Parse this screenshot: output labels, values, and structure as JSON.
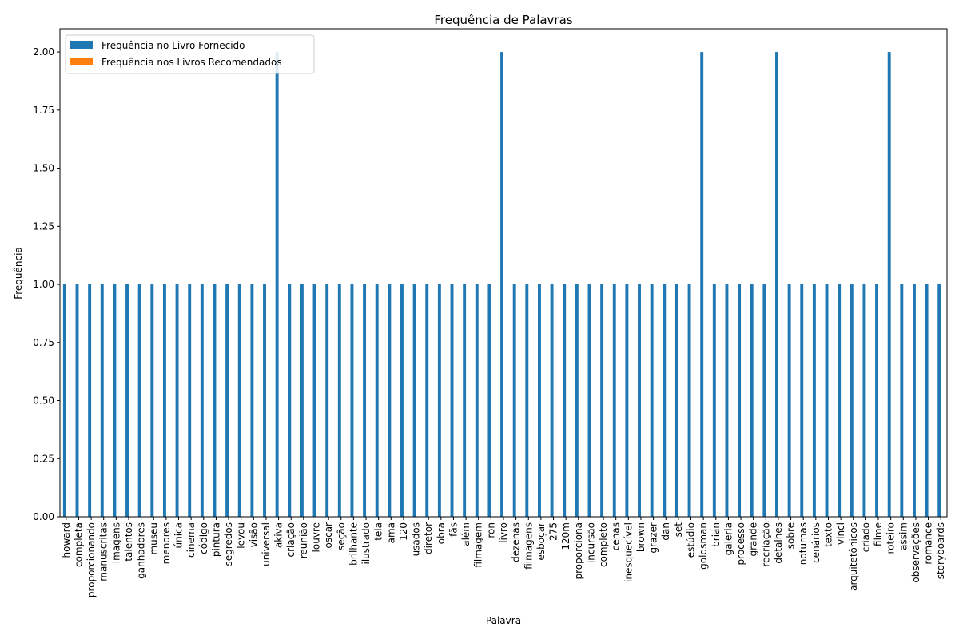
{
  "chart_data": {
    "type": "bar",
    "title": "Frequência de Palavras",
    "xlabel": "Palavra",
    "ylabel": "Frequência",
    "ylim": [
      0,
      2.1
    ],
    "yticks": [
      "0.00",
      "0.25",
      "0.50",
      "0.75",
      "1.00",
      "1.25",
      "1.50",
      "1.75",
      "2.00"
    ],
    "legend_position": "upper-left",
    "grid": false,
    "categories": [
      "howard",
      "completa",
      "proporcionando",
      "manuscritas",
      "imagens",
      "talentos",
      "ganhadores",
      "museu",
      "menores",
      "única",
      "cinema",
      "código",
      "pintura",
      "segredos",
      "levou",
      "visão",
      "universal",
      "akiva",
      "criação",
      "reunião",
      "louvre",
      "oscar",
      "seção",
      "brilhante",
      "ilustrado",
      "tela",
      "ama",
      "120",
      "usados",
      "diretor",
      "obra",
      "fãs",
      "além",
      "filmagem",
      "ron",
      "livro",
      "dezenas",
      "filmagens",
      "esboçar",
      "275",
      "120m",
      "proporciona",
      "incursão",
      "completo",
      "cenas",
      "inesquecível",
      "brown",
      "grazer",
      "dan",
      "set",
      "estúdio",
      "goldsman",
      "brian",
      "galeria",
      "processo",
      "grande",
      "recriação",
      "detalhes",
      "sobre",
      "noturnas",
      "cenários",
      "texto",
      "vinci",
      "arquitetônicos",
      "criado",
      "filme",
      "roteiro",
      "assim",
      "observações",
      "romance",
      "storyboards"
    ],
    "series": [
      {
        "name": "Frequência no Livro Fornecido",
        "color": "#1f77b4",
        "values": [
          1,
          1,
          1,
          1,
          1,
          1,
          1,
          1,
          1,
          1,
          1,
          1,
          1,
          1,
          1,
          1,
          1,
          2,
          1,
          1,
          1,
          1,
          1,
          1,
          1,
          1,
          1,
          1,
          1,
          1,
          1,
          1,
          1,
          1,
          1,
          2,
          1,
          1,
          1,
          1,
          1,
          1,
          1,
          1,
          1,
          1,
          1,
          1,
          1,
          1,
          1,
          2,
          1,
          1,
          1,
          1,
          1,
          2,
          1,
          1,
          1,
          1,
          1,
          1,
          1,
          1,
          2,
          1,
          1,
          1,
          1
        ]
      },
      {
        "name": "Frequência nos Livros Recomendados",
        "color": "#ff7f0e",
        "values": [
          0,
          0,
          0,
          0,
          0,
          0,
          0,
          0,
          0,
          0,
          0,
          0,
          0,
          0,
          0,
          0,
          0,
          0,
          0,
          0,
          0,
          0,
          0,
          0,
          0,
          0,
          0,
          0,
          0,
          0,
          0,
          0,
          0,
          0,
          0,
          0,
          0,
          0,
          0,
          0,
          0,
          0,
          0,
          0,
          0,
          0,
          0,
          0,
          0,
          0,
          0,
          0,
          0,
          0,
          0,
          0,
          0,
          0,
          0,
          0,
          0,
          0,
          0,
          0,
          0,
          0,
          0,
          0,
          0,
          0,
          0
        ]
      }
    ]
  }
}
